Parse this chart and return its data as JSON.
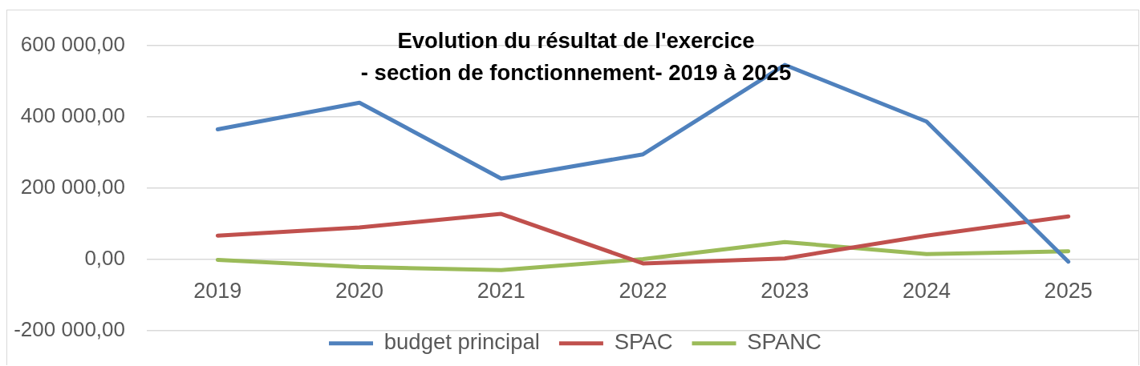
{
  "chart_data": {
    "type": "line",
    "title": "Evolution du résultat de l'exercice\n- section de fonctionnement- 2019 à 2025",
    "categories": [
      "2019",
      "2020",
      "2021",
      "2022",
      "2023",
      "2024",
      "2025"
    ],
    "series": [
      {
        "name": "budget principal",
        "color": "#4f81bd",
        "values": [
          365000,
          440000,
          227000,
          295000,
          546000,
          387000,
          -6000
        ]
      },
      {
        "name": "SPAC",
        "color": "#c0504d",
        "values": [
          67000,
          90000,
          128000,
          -11000,
          3000,
          67000,
          121000
        ]
      },
      {
        "name": "SPANC",
        "color": "#9bbb59",
        "values": [
          -1000,
          -21000,
          -30000,
          1000,
          49000,
          15000,
          23000
        ]
      }
    ],
    "ylim": [
      -200000,
      600000
    ],
    "yticks": [
      {
        "value": -200000,
        "label": "-200 000,00"
      },
      {
        "value": 0,
        "label": "0,00"
      },
      {
        "value": 200000,
        "label": "200 000,00"
      },
      {
        "value": 400000,
        "label": "400 000,00"
      },
      {
        "value": 600000,
        "label": "600 000,00"
      }
    ],
    "grid": "y",
    "legend": "bottom",
    "marker": "none",
    "line_style": "solid"
  }
}
